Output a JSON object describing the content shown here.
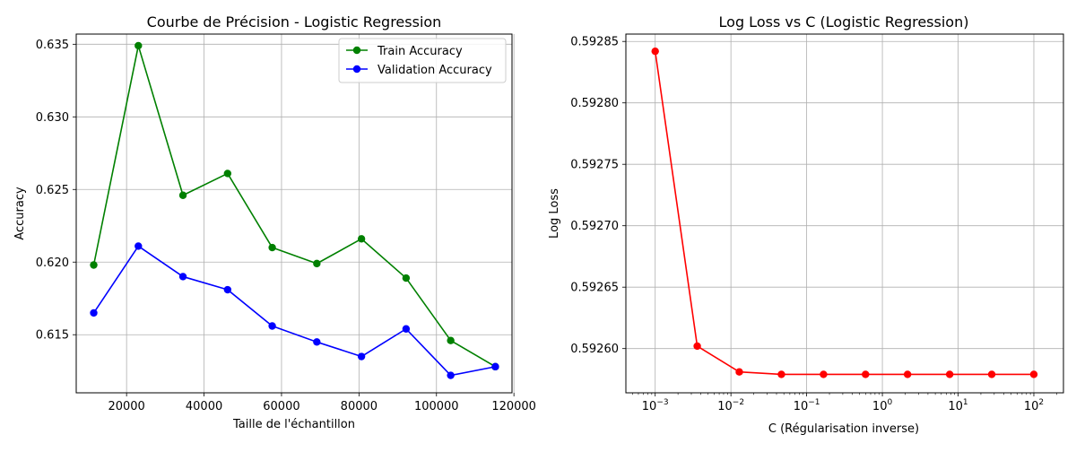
{
  "chart_data": [
    {
      "type": "line",
      "title": "Courbe de Précision - Logistic Regression",
      "xlabel": "Taille de l'échantillon",
      "ylabel": "Accuracy",
      "xlim": [
        7000,
        119500
      ],
      "ylim": [
        0.611,
        0.6357
      ],
      "xticks": [
        20000,
        40000,
        60000,
        80000,
        100000,
        120000
      ],
      "xtick_labels": [
        "20000",
        "40000",
        "60000",
        "80000",
        "100000",
        "120000"
      ],
      "yticks": [
        0.615,
        0.62,
        0.625,
        0.63,
        0.635
      ],
      "ytick_labels": [
        "0.615",
        "0.620",
        "0.625",
        "0.630",
        "0.635"
      ],
      "grid": true,
      "legend": "top-right",
      "x": [
        11520,
        23040,
        34560,
        46080,
        57600,
        69120,
        80640,
        92160,
        103680,
        115200
      ],
      "series": [
        {
          "name": "Train Accuracy",
          "color": "#008000",
          "marker": "circle",
          "values": [
            0.6198,
            0.6349,
            0.6246,
            0.6261,
            0.621,
            0.6199,
            0.6216,
            0.6189,
            0.6146,
            0.6128
          ]
        },
        {
          "name": "Validation Accuracy",
          "color": "#0000ff",
          "marker": "circle",
          "values": [
            0.6165,
            0.6211,
            0.619,
            0.6181,
            0.6156,
            0.6145,
            0.6135,
            0.6154,
            0.6122,
            0.6128
          ]
        }
      ]
    },
    {
      "type": "line",
      "title": "Log Loss vs C (Logistic Regression)",
      "xlabel": "C (Régularisation inverse)",
      "ylabel": "Log Loss",
      "xscale": "log",
      "xlim": [
        0.00041,
        246
      ],
      "ylim": [
        0.592564,
        0.592856
      ],
      "xticks": [
        0.001,
        0.01,
        0.1,
        1,
        10,
        100
      ],
      "xtick_labels": [
        "10",
        "10",
        "10",
        "10",
        "10",
        "10"
      ],
      "xtick_exponents": [
        "−3",
        "−2",
        "−1",
        "0",
        "1",
        "2"
      ],
      "yticks": [
        0.5926,
        0.59265,
        0.5927,
        0.59275,
        0.5928,
        0.59285
      ],
      "ytick_labels": [
        "0.59260",
        "0.59265",
        "0.59270",
        "0.59275",
        "0.59280",
        "0.59285"
      ],
      "grid": true,
      "x": [
        0.001,
        0.00359,
        0.0129,
        0.0464,
        0.167,
        0.599,
        2.15,
        7.74,
        27.8,
        100
      ],
      "series": [
        {
          "color": "#ff0000",
          "marker": "circle",
          "values": [
            0.592842,
            0.592602,
            0.592581,
            0.592579,
            0.592579,
            0.592579,
            0.592579,
            0.592579,
            0.592579,
            0.592579
          ]
        }
      ]
    }
  ]
}
